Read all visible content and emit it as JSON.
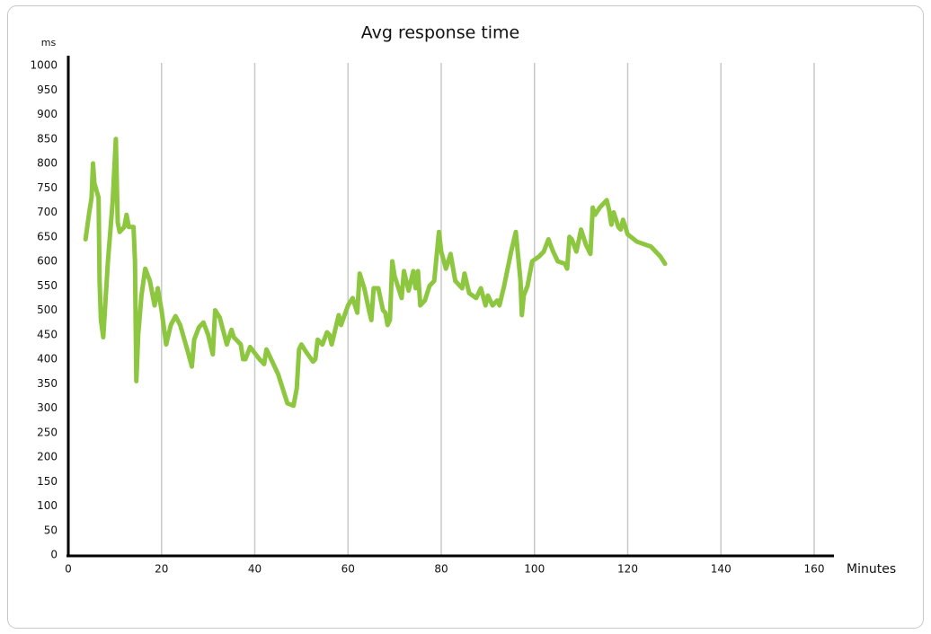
{
  "chart_data": {
    "type": "line",
    "title": "Avg response time",
    "y_label": "ms",
    "x_label": "Minutes",
    "color": "#8dc63f",
    "grid": true,
    "xlim": [
      0,
      160
    ],
    "xticks": [
      0,
      20,
      40,
      60,
      80,
      100,
      120,
      140,
      160
    ],
    "ylim": [
      0,
      1000
    ],
    "yticks": [
      0,
      50,
      100,
      150,
      200,
      250,
      300,
      350,
      400,
      450,
      500,
      550,
      600,
      650,
      700,
      750,
      800,
      850,
      900,
      950,
      1000
    ],
    "x": [
      3.7,
      4.5,
      5,
      5.3,
      5.6,
      6.5,
      6.7,
      7,
      7.5,
      8.5,
      9.5,
      10.2,
      10.6,
      11,
      12,
      12.5,
      13,
      14,
      14.3,
      14.6,
      15,
      15.7,
      16.5,
      17.5,
      18.5,
      19.2,
      20,
      21,
      22,
      23,
      24,
      25.5,
      26.5,
      27,
      28,
      29,
      30,
      31,
      31.5,
      32.5,
      34,
      35,
      35.5,
      36,
      37,
      37.5,
      38,
      39,
      41,
      42,
      42.5,
      43.5,
      45,
      46,
      47,
      48.3,
      49,
      49.5,
      50,
      51,
      52.5,
      53,
      53.5,
      54.5,
      55.5,
      56,
      56.5,
      58,
      58.5,
      60,
      61,
      62,
      62.5,
      63.5,
      64.5,
      65,
      65.5,
      66.5,
      67.5,
      68,
      68.5,
      69,
      69.5,
      70,
      70.5,
      71.5,
      72,
      73,
      74,
      74.5,
      75,
      75.5,
      76.5,
      77.5,
      78.5,
      79,
      79.5,
      80,
      81,
      82,
      83,
      84.5,
      85,
      86,
      87.5,
      88.5,
      89.5,
      90,
      91,
      92,
      92.5,
      93.5,
      95,
      96,
      97,
      97.3,
      97.7,
      98.5,
      99.5,
      101,
      102,
      103,
      104,
      105,
      106.5,
      107,
      107.5,
      108,
      109,
      110,
      111,
      112,
      112.5,
      113,
      114,
      115.5,
      116,
      116.5,
      117,
      118,
      118.5,
      119,
      120,
      122,
      125,
      127,
      128
    ],
    "values": [
      645,
      700,
      730,
      800,
      760,
      730,
      560,
      480,
      445,
      600,
      720,
      850,
      680,
      660,
      670,
      695,
      670,
      670,
      600,
      355,
      450,
      530,
      585,
      560,
      510,
      545,
      500,
      430,
      470,
      488,
      470,
      420,
      385,
      440,
      465,
      475,
      450,
      410,
      500,
      485,
      430,
      460,
      445,
      440,
      430,
      400,
      400,
      425,
      400,
      390,
      420,
      400,
      370,
      340,
      310,
      305,
      340,
      420,
      430,
      415,
      395,
      400,
      440,
      430,
      455,
      450,
      430,
      490,
      470,
      510,
      525,
      495,
      575,
      545,
      500,
      480,
      545,
      545,
      500,
      495,
      470,
      480,
      600,
      570,
      555,
      525,
      580,
      540,
      580,
      545,
      580,
      510,
      520,
      550,
      560,
      610,
      660,
      620,
      585,
      615,
      560,
      545,
      575,
      535,
      525,
      545,
      510,
      530,
      510,
      520,
      510,
      550,
      620,
      660,
      560,
      490,
      530,
      550,
      600,
      610,
      620,
      645,
      620,
      600,
      595,
      585,
      650,
      645,
      620,
      665,
      635,
      615,
      710,
      695,
      710,
      725,
      705,
      675,
      700,
      670,
      665,
      685,
      655,
      640,
      630,
      610,
      595
    ]
  }
}
